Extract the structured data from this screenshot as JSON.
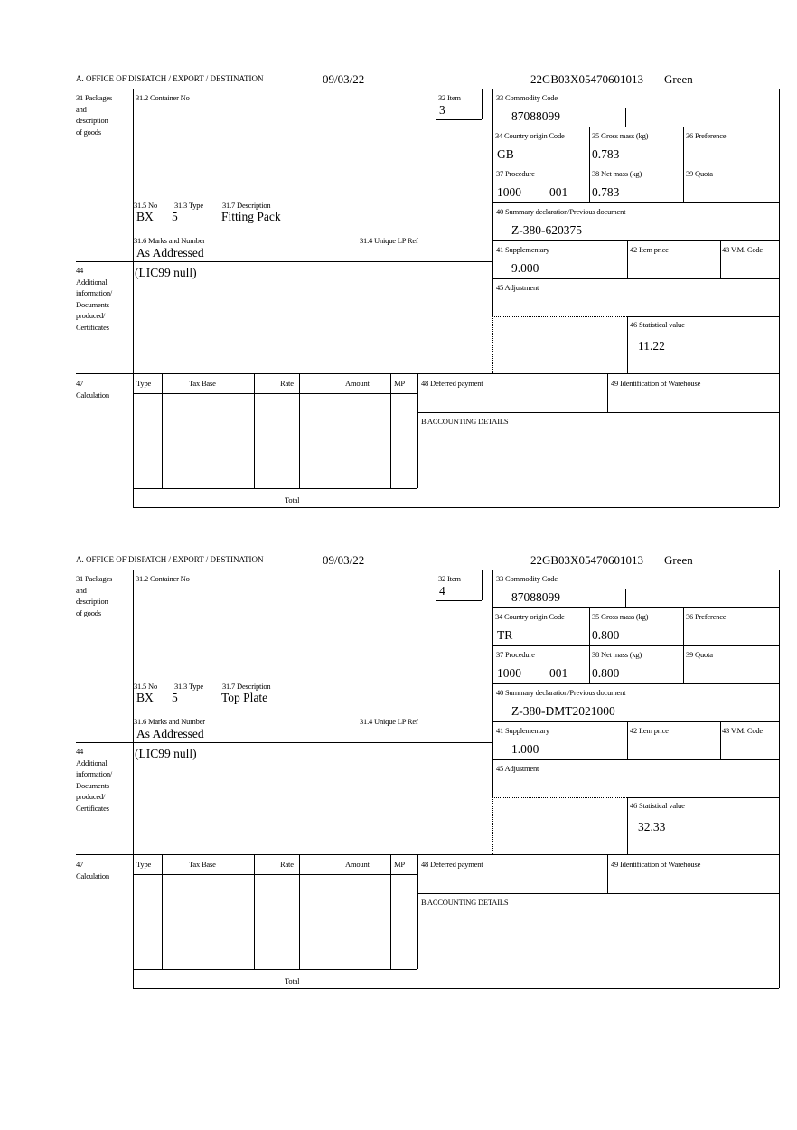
{
  "labels": {
    "office": "A. OFFICE OF DISPATCH / EXPORT / DESTINATION",
    "packages": [
      "31 Packages",
      "and",
      "description",
      "of goods"
    ],
    "container_no": "31.2 Container No",
    "item": "32 Item",
    "commodity_code": "33 Commodity Code",
    "country_origin": "34 Country origin Code",
    "gross_mass": "35 Gross mass (kg)",
    "preference": "36 Preference",
    "procedure": "37 Procedure",
    "net_mass": "38 Net mass (kg)",
    "quota": "39 Quota",
    "summary_declaration": "40 Summary declaration/Previous document",
    "supplementary": "41 Supplementary",
    "item_price": "42 Item price",
    "vm_code": "43 V.M. Code",
    "adjustment": "45 Adjustment",
    "statistical_value": "46 Statistical value",
    "no": "31.5 No",
    "type": "31.3 Type",
    "description": "31.7 Description",
    "marks": "31.6 Marks and Number",
    "unique_lp_ref": "31.4 Unique LP Ref",
    "additional_info": [
      "44",
      "Additional",
      "information/",
      "Documents",
      "produced/",
      "Certificates"
    ],
    "calculation": [
      "47",
      "Calculation"
    ],
    "calc_columns": [
      "Type",
      "Tax Base",
      "Rate",
      "Amount",
      "MP"
    ],
    "total": "Total",
    "deferred_payment": "48 Deferred payment",
    "warehouse": "49 Identification of Warehouse",
    "accounting": "B ACCOUNTING DETAILS"
  },
  "forms": [
    {
      "date": "09/03/22",
      "reference": "22GB03X05470601013",
      "route": "Green",
      "item": "3",
      "commodity_code": "87088099",
      "country_origin": "GB",
      "gross_mass": "0.783",
      "procedure": "1000",
      "procedure_extra": "001",
      "net_mass": "0.783",
      "summary_declaration": "Z-380-620375",
      "supplementary": "9.000",
      "statistical_value": "11.22",
      "package_kind": "BX",
      "package_count": "5",
      "description": "Fitting Pack",
      "marks": "As Addressed",
      "additional_info": "(LIC99 null)"
    },
    {
      "date": "09/03/22",
      "reference": "22GB03X05470601013",
      "route": "Green",
      "item": "4",
      "commodity_code": "87088099",
      "country_origin": "TR",
      "gross_mass": "0.800",
      "procedure": "1000",
      "procedure_extra": "001",
      "net_mass": "0.800",
      "summary_declaration": "Z-380-DMT2021000",
      "supplementary": "1.000",
      "statistical_value": "32.33",
      "package_kind": "BX",
      "package_count": "5",
      "description": "Top Plate",
      "marks": "As Addressed",
      "additional_info": "(LIC99 null)"
    }
  ]
}
